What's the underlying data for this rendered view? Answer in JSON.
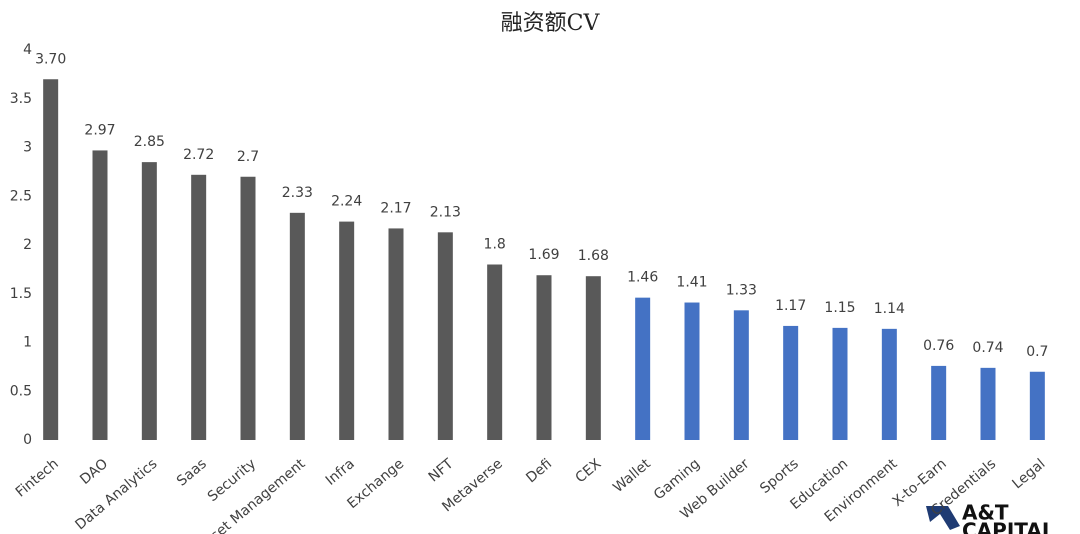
{
  "chart_data": {
    "type": "bar",
    "title": "融资额CV",
    "categories": [
      "Fintech",
      "DAO",
      "Data Analytics",
      "Saas",
      "Security",
      "Asset Management",
      "Infra",
      "Exchange",
      "NFT",
      "Metaverse",
      "Defi",
      "CEX",
      "Wallet",
      "Gaming",
      "Web Builder",
      "Sports",
      "Education",
      "Environment",
      "X-to-Earn",
      "Credentials",
      "Legal"
    ],
    "values": [
      3.7,
      2.97,
      2.85,
      2.72,
      2.7,
      2.33,
      2.24,
      2.17,
      2.13,
      1.8,
      1.69,
      1.68,
      1.46,
      1.41,
      1.33,
      1.17,
      1.15,
      1.14,
      0.76,
      0.74,
      0.7
    ],
    "value_labels": [
      "3.70",
      "2.97",
      "2.85",
      "2.72",
      "2.7",
      "2.33",
      "2.24",
      "2.17",
      "2.13",
      "1.8",
      "1.69",
      "1.68",
      "1.46",
      "1.41",
      "1.33",
      "1.17",
      "1.15",
      "1.14",
      "0.76",
      "0.74",
      "0.7"
    ],
    "colors": [
      "#595959",
      "#595959",
      "#595959",
      "#595959",
      "#595959",
      "#595959",
      "#595959",
      "#595959",
      "#595959",
      "#595959",
      "#595959",
      "#595959",
      "#4472c4",
      "#4472c4",
      "#4472c4",
      "#4472c4",
      "#4472c4",
      "#4472c4",
      "#4472c4",
      "#4472c4",
      "#4472c4"
    ],
    "ylim": [
      0,
      4
    ],
    "yticks": [
      0,
      0.5,
      1,
      1.5,
      2,
      2.5,
      3,
      3.5,
      4
    ],
    "grid": false
  },
  "watermark": {
    "line1": "A&T",
    "line2": "CAPITAL"
  }
}
